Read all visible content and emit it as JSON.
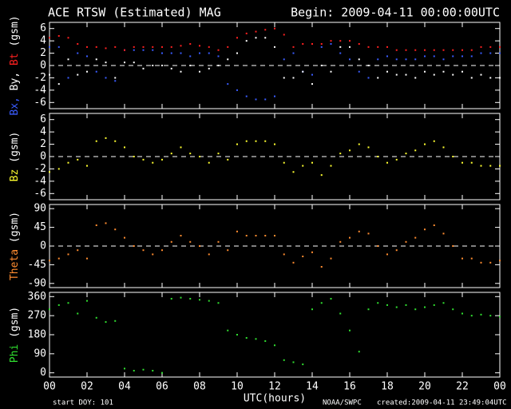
{
  "header": {
    "title": "ACE RTSW (Estimated) MAG",
    "begin": "Begin: 2009-04-11 00:00:00UTC"
  },
  "footer": {
    "start_doy": "start DOY:  101",
    "credit": "NOAA/SWPC",
    "created": "created:2009-04-11 23:49:04UTC"
  },
  "chart_data": [
    {
      "type": "scatter",
      "y_label_unit": "(gsm)",
      "zero_line": true,
      "x": [
        0,
        0.5,
        1,
        1.5,
        2,
        2.5,
        3,
        3.5,
        4,
        4.5,
        5,
        5.5,
        6,
        6.5,
        7,
        7.5,
        8,
        8.5,
        9,
        9.5,
        10,
        10.5,
        11,
        11.5,
        12,
        12.5,
        13,
        13.5,
        14,
        14.5,
        15,
        15.5,
        16,
        16.5,
        17,
        17.5,
        18,
        18.5,
        19,
        19.5,
        20,
        20.5,
        21,
        21.5,
        22,
        22.5,
        23,
        23.5,
        24
      ],
      "xlim": [
        0,
        24
      ],
      "xticks": [
        0,
        2,
        4,
        6,
        8,
        10,
        12,
        14,
        16,
        18,
        20,
        22,
        24
      ],
      "ylim": [
        -7,
        7
      ],
      "yticks": [
        -6,
        -4,
        -2,
        0,
        2,
        4,
        6
      ],
      "series": [
        {
          "name": "Bx,",
          "color": "#3a5cff",
          "values": [
            3,
            3,
            -2,
            2,
            1.5,
            -1,
            -2,
            -2.5,
            2.5,
            2.5,
            2.5,
            2.5,
            2,
            2,
            2,
            1.5,
            2,
            2,
            1.5,
            -3,
            -4,
            -5,
            -5.5,
            -5.5,
            -5,
            1,
            2,
            -1,
            -1.5,
            3,
            3.5,
            2,
            1,
            -1,
            -2,
            1,
            1.5,
            1,
            1,
            1,
            1.5,
            1.5,
            1,
            1.5,
            1.5,
            1.5,
            2,
            2,
            2
          ]
        },
        {
          "name": "By,",
          "color": "#ffffff",
          "values": [
            -1.5,
            -3,
            1,
            -1.5,
            -1,
            1,
            0.5,
            -2,
            0.5,
            0.5,
            -0.5,
            0,
            0,
            -0.5,
            -1,
            0,
            -1,
            -0.5,
            0,
            1,
            2,
            4,
            4.5,
            4.5,
            3,
            -2,
            -2,
            -1,
            -3,
            0,
            -1,
            3,
            3,
            1,
            0,
            -2,
            -1,
            -1.5,
            -1.5,
            -2,
            -1,
            -1.5,
            -1,
            -1.5,
            -1,
            -2,
            -1.5,
            -2,
            -2
          ]
        },
        {
          "name": "Bt",
          "color": "#ff2020",
          "values": [
            4.5,
            4.8,
            4.5,
            3.5,
            3,
            3,
            2.8,
            3,
            2.5,
            3,
            3,
            3,
            3,
            3,
            3.2,
            3.5,
            3.2,
            3,
            2.5,
            3,
            4.5,
            5.2,
            5.5,
            5.8,
            6,
            5,
            3,
            3.5,
            3.5,
            3.5,
            4,
            4,
            4,
            3.5,
            3,
            3,
            3,
            2.5,
            2.5,
            2.5,
            2.5,
            2.5,
            2.5,
            2.5,
            2.5,
            2.5,
            3,
            3,
            3
          ]
        }
      ]
    },
    {
      "type": "scatter",
      "y_label_unit": "(gsm)",
      "zero_line": true,
      "x": [
        0,
        0.5,
        1,
        1.5,
        2,
        2.5,
        3,
        3.5,
        4,
        4.5,
        5,
        5.5,
        6,
        6.5,
        7,
        7.5,
        8,
        8.5,
        9,
        9.5,
        10,
        10.5,
        11,
        11.5,
        12,
        12.5,
        13,
        13.5,
        14,
        14.5,
        15,
        15.5,
        16,
        16.5,
        17,
        17.5,
        18,
        18.5,
        19,
        19.5,
        20,
        20.5,
        21,
        21.5,
        22,
        22.5,
        23,
        23.5,
        24
      ],
      "xlim": [
        0,
        24
      ],
      "xticks": [
        0,
        2,
        4,
        6,
        8,
        10,
        12,
        14,
        16,
        18,
        20,
        22,
        24
      ],
      "ylim": [
        -7,
        7
      ],
      "yticks": [
        -6,
        -4,
        -2,
        0,
        2,
        4,
        6
      ],
      "series": [
        {
          "name": "Bz",
          "color": "#ffff30",
          "values": [
            -2.5,
            -2,
            -1,
            -0.5,
            -1.5,
            2.5,
            3,
            2.5,
            1.5,
            0,
            -0.5,
            -1,
            -0.5,
            0.5,
            1.5,
            0.5,
            0,
            -1,
            0.5,
            -0.5,
            2,
            2.5,
            2.5,
            2.5,
            2,
            -1,
            -2.5,
            -1.5,
            -1,
            -3,
            -1.5,
            0.5,
            1,
            2,
            1.5,
            0,
            -1,
            -0.5,
            0.5,
            1,
            2,
            2.5,
            1.5,
            0,
            -1,
            -1,
            -1.5,
            -1.5,
            -1.5
          ]
        }
      ]
    },
    {
      "type": "scatter",
      "y_label_unit": "(gsm)",
      "zero_line": true,
      "x": [
        0,
        0.5,
        1,
        1.5,
        2,
        2.5,
        3,
        3.5,
        4,
        4.5,
        5,
        5.5,
        6,
        6.5,
        7,
        7.5,
        8,
        8.5,
        9,
        9.5,
        10,
        10.5,
        11,
        11.5,
        12,
        12.5,
        13,
        13.5,
        14,
        14.5,
        15,
        15.5,
        16,
        16.5,
        17,
        17.5,
        18,
        18.5,
        19,
        19.5,
        20,
        20.5,
        21,
        21.5,
        22,
        22.5,
        23,
        23.5,
        24
      ],
      "xlim": [
        0,
        24
      ],
      "xticks": [
        0,
        2,
        4,
        6,
        8,
        10,
        12,
        14,
        16,
        18,
        20,
        22,
        24
      ],
      "ylim": [
        -100,
        100
      ],
      "yticks": [
        -90,
        -45,
        0,
        45,
        90
      ],
      "series": [
        {
          "name": "Theta",
          "color": "#ff8c30",
          "values": [
            -35,
            -30,
            -20,
            -10,
            -30,
            50,
            55,
            40,
            20,
            0,
            -10,
            -20,
            -10,
            10,
            25,
            10,
            0,
            -20,
            10,
            -10,
            35,
            25,
            25,
            25,
            25,
            -20,
            -40,
            -25,
            -15,
            -50,
            -30,
            10,
            20,
            35,
            30,
            0,
            -20,
            -10,
            10,
            20,
            40,
            50,
            30,
            0,
            -30,
            -30,
            -40,
            -40,
            -35
          ]
        }
      ]
    },
    {
      "type": "scatter",
      "y_label_unit": "(gsm)",
      "zero_line": false,
      "x": [
        0,
        0.5,
        1,
        1.5,
        2,
        2.5,
        3,
        3.5,
        4,
        4.5,
        5,
        5.5,
        6,
        6.5,
        7,
        7.5,
        8,
        8.5,
        9,
        9.5,
        10,
        10.5,
        11,
        11.5,
        12,
        12.5,
        13,
        13.5,
        14,
        14.5,
        15,
        15.5,
        16,
        16.5,
        17,
        17.5,
        18,
        18.5,
        19,
        19.5,
        20,
        20.5,
        21,
        21.5,
        22,
        22.5,
        23,
        23.5,
        24
      ],
      "xlim": [
        0,
        24
      ],
      "xticks": [
        {
          "value": 0,
          "label": "00"
        },
        {
          "value": 2,
          "label": "02"
        },
        {
          "value": 4,
          "label": "04"
        },
        {
          "value": 6,
          "label": "06"
        },
        {
          "value": 8,
          "label": "08"
        },
        10,
        12,
        14,
        16,
        18,
        20,
        22,
        {
          "value": 24,
          "label": "00"
        }
      ],
      "x_label": "UTC(hours)",
      "ylim": [
        -20,
        380
      ],
      "yticks": [
        0,
        90,
        180,
        270,
        360
      ],
      "series": [
        {
          "name": "Phi",
          "color": "#30e030",
          "values": [
            300,
            320,
            330,
            280,
            340,
            260,
            240,
            245,
            20,
            10,
            15,
            10,
            0,
            350,
            355,
            350,
            345,
            340,
            330,
            200,
            180,
            165,
            160,
            150,
            130,
            60,
            50,
            40,
            300,
            330,
            350,
            280,
            200,
            100,
            300,
            330,
            320,
            310,
            320,
            300,
            310,
            320,
            330,
            300,
            280,
            270,
            275,
            270,
            265
          ]
        }
      ]
    }
  ]
}
